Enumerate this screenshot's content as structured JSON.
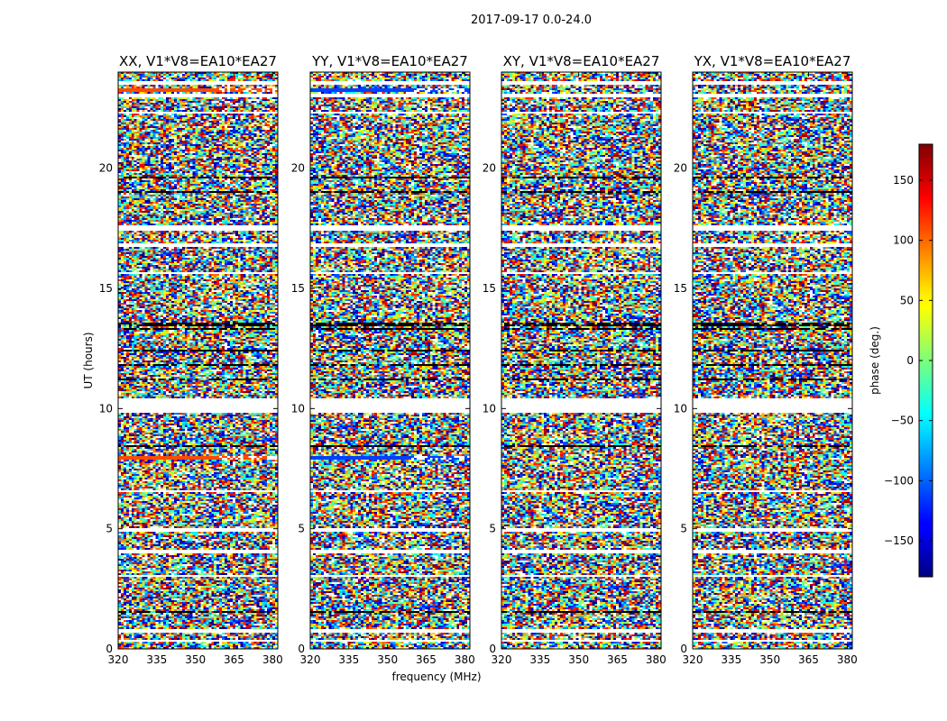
{
  "chart_data": {
    "type": "heatmap",
    "title": "2017-09-17 0.0-24.0",
    "xlabel": "frequency (MHz)",
    "ylabel": "UT (hours)",
    "xlim": [
      320,
      382
    ],
    "ylim": [
      0,
      24
    ],
    "xticks": [
      320,
      335,
      350,
      365,
      380
    ],
    "yticks": [
      0,
      5,
      10,
      15,
      20
    ],
    "panels": [
      {
        "title": "XX, V1*V8=EA10*EA27",
        "band_color": "#ff4a00"
      },
      {
        "title": "YY, V1*V8=EA10*EA27",
        "band_color": "#0040ff"
      },
      {
        "title": "XY, V1*V8=EA10*EA27",
        "band_color": null
      },
      {
        "title": "YX, V1*V8=EA10*EA27",
        "band_color": null
      }
    ],
    "colorbar": {
      "label": "phase (deg.)",
      "range": [
        -180,
        180
      ],
      "ticks": [
        -150,
        -100,
        -50,
        0,
        50,
        100,
        150
      ],
      "tick_labels": [
        "−150",
        "−100",
        "−50",
        "0",
        "50",
        "100",
        "150"
      ],
      "colormap": "jet"
    },
    "white_gap_hours": [
      [
        0.3,
        0.4
      ],
      [
        0.7,
        0.8
      ],
      [
        3.0,
        3.08
      ],
      [
        4.0,
        4.1
      ],
      [
        4.9,
        5.0
      ],
      [
        6.55,
        6.6
      ],
      [
        9.85,
        9.95
      ],
      [
        10.0,
        10.45
      ],
      [
        11.6,
        11.65
      ],
      [
        14.3,
        14.35
      ],
      [
        15.6,
        15.65
      ],
      [
        16.7,
        16.9
      ],
      [
        17.4,
        17.6
      ],
      [
        18.2,
        18.25
      ],
      [
        22.25,
        22.35
      ],
      [
        22.95,
        23.1
      ],
      [
        23.5,
        23.6
      ]
    ],
    "dark_band_hours": [
      [
        0.95,
        1.0
      ],
      [
        1.5,
        1.55
      ],
      [
        2.6,
        2.65
      ],
      [
        8.4,
        8.45
      ],
      [
        11.2,
        11.25
      ],
      [
        11.8,
        11.85
      ],
      [
        12.4,
        12.45
      ],
      [
        13.25,
        13.35
      ],
      [
        13.45,
        13.55
      ],
      [
        18.5,
        18.55
      ],
      [
        19.0,
        19.05
      ],
      [
        19.6,
        19.65
      ]
    ],
    "solid_band_hours": [
      [
        7.85,
        8.0
      ],
      [
        10.05,
        10.35
      ],
      [
        23.15,
        23.35
      ]
    ]
  }
}
